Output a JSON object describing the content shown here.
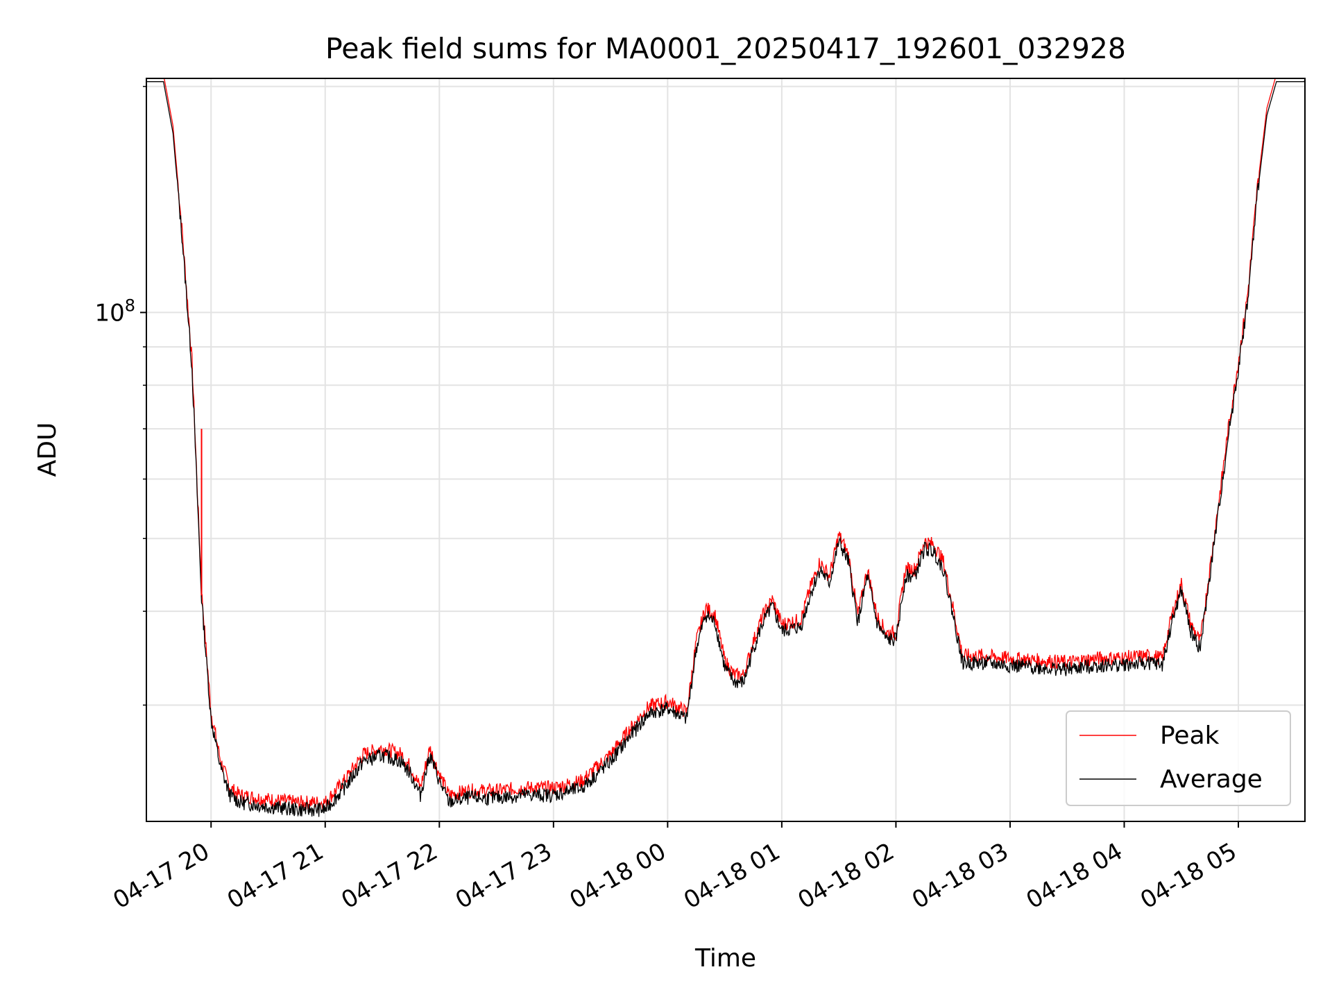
{
  "chart_data": {
    "type": "line",
    "title": "Peak field sums for MA0001_20250417_192601_032928",
    "xlabel": "Time",
    "ylabel": "ADU",
    "y_scale": "log",
    "ylim": [
      21000000,
      205000000
    ],
    "xlim": [
      "2025-04-17 19:26",
      "2025-04-18 05:35"
    ],
    "grid": true,
    "legend": {
      "position": "lower-right",
      "entries": [
        "Peak",
        "Average"
      ]
    },
    "x_ticks": [
      {
        "t": "2025-04-17 20:00",
        "label": "04-17 20"
      },
      {
        "t": "2025-04-17 21:00",
        "label": "04-17 21"
      },
      {
        "t": "2025-04-17 22:00",
        "label": "04-17 22"
      },
      {
        "t": "2025-04-17 23:00",
        "label": "04-17 23"
      },
      {
        "t": "2025-04-18 00:00",
        "label": "04-18 00"
      },
      {
        "t": "2025-04-18 01:00",
        "label": "04-18 01"
      },
      {
        "t": "2025-04-18 02:00",
        "label": "04-18 02"
      },
      {
        "t": "2025-04-18 03:00",
        "label": "04-18 03"
      },
      {
        "t": "2025-04-18 04:00",
        "label": "04-18 04"
      },
      {
        "t": "2025-04-18 05:00",
        "label": "04-18 05"
      }
    ],
    "y_tick_label": "10^8",
    "y_major_tick": 100000000,
    "y_minor_ticks": [
      30000000,
      40000000,
      50000000,
      60000000,
      70000000,
      80000000,
      90000000,
      200000000
    ],
    "series": [
      {
        "name": "Peak",
        "color": "#ff0000",
        "spikes": [
          {
            "t": "2025-04-17 19:55",
            "from": 42000000,
            "to": 70000000
          }
        ]
      },
      {
        "name": "Average",
        "color": "#000000",
        "points": [
          [
            "2025-04-17 19:26",
            205000000
          ],
          [
            "2025-04-17 19:35",
            205000000
          ],
          [
            "2025-04-17 19:40",
            175000000
          ],
          [
            "2025-04-17 19:45",
            125000000
          ],
          [
            "2025-04-17 19:50",
            85000000
          ],
          [
            "2025-04-17 19:55",
            42000000
          ],
          [
            "2025-04-17 20:00",
            29000000
          ],
          [
            "2025-04-17 20:05",
            25000000
          ],
          [
            "2025-04-17 20:10",
            23000000
          ],
          [
            "2025-04-17 20:15",
            22500000
          ],
          [
            "2025-04-17 20:30",
            22200000
          ],
          [
            "2025-04-17 20:45",
            22000000
          ],
          [
            "2025-04-17 21:00",
            22000000
          ],
          [
            "2025-04-17 21:10",
            23500000
          ],
          [
            "2025-04-17 21:20",
            25500000
          ],
          [
            "2025-04-17 21:30",
            26000000
          ],
          [
            "2025-04-17 21:40",
            25500000
          ],
          [
            "2025-04-17 21:45",
            24500000
          ],
          [
            "2025-04-17 21:50",
            23000000
          ],
          [
            "2025-04-17 21:55",
            26000000
          ],
          [
            "2025-04-17 22:00",
            24000000
          ],
          [
            "2025-04-17 22:05",
            22500000
          ],
          [
            "2025-04-17 22:15",
            22800000
          ],
          [
            "2025-04-17 22:30",
            22800000
          ],
          [
            "2025-04-17 22:45",
            23000000
          ],
          [
            "2025-04-17 23:00",
            23000000
          ],
          [
            "2025-04-17 23:15",
            23500000
          ],
          [
            "2025-04-17 23:30",
            25500000
          ],
          [
            "2025-04-17 23:40",
            27500000
          ],
          [
            "2025-04-17 23:50",
            29500000
          ],
          [
            "2025-04-18 00:00",
            30000000
          ],
          [
            "2025-04-18 00:10",
            29000000
          ],
          [
            "2025-04-18 00:15",
            36000000
          ],
          [
            "2025-04-18 00:20",
            40000000
          ],
          [
            "2025-04-18 00:25",
            39000000
          ],
          [
            "2025-04-18 00:30",
            34000000
          ],
          [
            "2025-04-18 00:35",
            32500000
          ],
          [
            "2025-04-18 00:40",
            32500000
          ],
          [
            "2025-04-18 00:45",
            36000000
          ],
          [
            "2025-04-18 00:50",
            39000000
          ],
          [
            "2025-04-18 00:55",
            41000000
          ],
          [
            "2025-04-18 01:00",
            38000000
          ],
          [
            "2025-04-18 01:10",
            38500000
          ],
          [
            "2025-04-18 01:15",
            42500000
          ],
          [
            "2025-04-18 01:20",
            46000000
          ],
          [
            "2025-04-18 01:25",
            44000000
          ],
          [
            "2025-04-18 01:30",
            50000000
          ],
          [
            "2025-04-18 01:35",
            47000000
          ],
          [
            "2025-04-18 01:40",
            39000000
          ],
          [
            "2025-04-18 01:45",
            45000000
          ],
          [
            "2025-04-18 01:50",
            39000000
          ],
          [
            "2025-04-18 01:55",
            37000000
          ],
          [
            "2025-04-18 02:00",
            37000000
          ],
          [
            "2025-04-18 02:05",
            45000000
          ],
          [
            "2025-04-18 02:10",
            45000000
          ],
          [
            "2025-04-18 02:15",
            49000000
          ],
          [
            "2025-04-18 02:20",
            48500000
          ],
          [
            "2025-04-18 02:25",
            46000000
          ],
          [
            "2025-04-18 02:30",
            40000000
          ],
          [
            "2025-04-18 02:35",
            34500000
          ],
          [
            "2025-04-18 02:45",
            34500000
          ],
          [
            "2025-04-18 03:00",
            34200000
          ],
          [
            "2025-04-18 03:30",
            33800000
          ],
          [
            "2025-04-18 03:45",
            34200000
          ],
          [
            "2025-04-18 04:00",
            34300000
          ],
          [
            "2025-04-18 04:15",
            34500000
          ],
          [
            "2025-04-18 04:20",
            34200000
          ],
          [
            "2025-04-18 04:25",
            39000000
          ],
          [
            "2025-04-18 04:30",
            43000000
          ],
          [
            "2025-04-18 04:35",
            38000000
          ],
          [
            "2025-04-18 04:40",
            36000000
          ],
          [
            "2025-04-18 04:45",
            45000000
          ],
          [
            "2025-04-18 04:50",
            56000000
          ],
          [
            "2025-04-18 04:55",
            70000000
          ],
          [
            "2025-04-18 05:00",
            85000000
          ],
          [
            "2025-04-18 05:05",
            105000000
          ],
          [
            "2025-04-18 05:10",
            145000000
          ],
          [
            "2025-04-18 05:15",
            185000000
          ],
          [
            "2025-04-18 05:20",
            205000000
          ],
          [
            "2025-04-18 05:35",
            205000000
          ]
        ]
      }
    ]
  }
}
